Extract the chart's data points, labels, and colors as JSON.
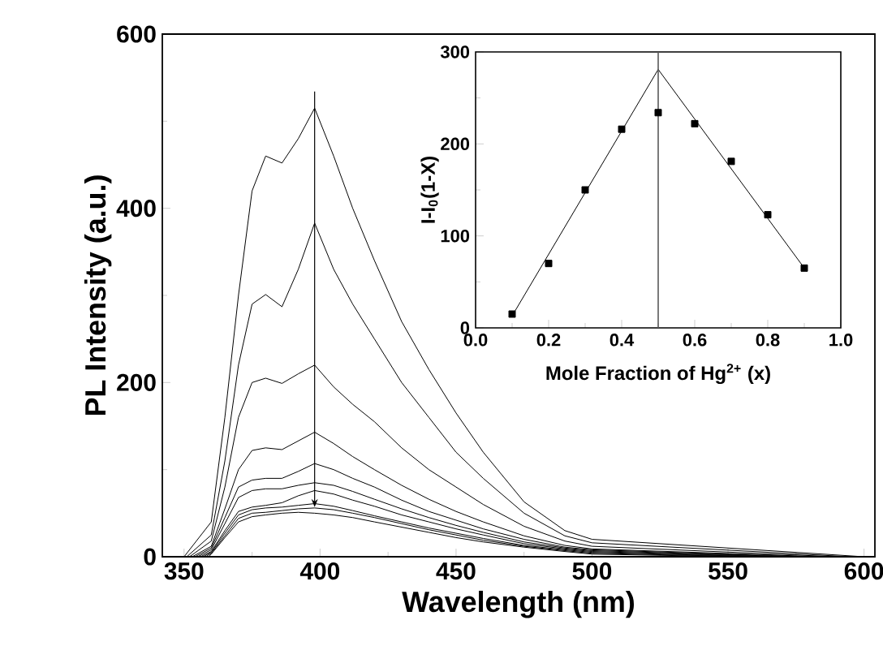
{
  "chart_data": [
    {
      "type": "line",
      "xlabel": "Wavelength (nm)",
      "ylabel": "PL Intensity (a.u.)",
      "xlim": [
        342,
        604
      ],
      "ylim": [
        0,
        600
      ],
      "xticks": [
        350,
        400,
        450,
        500,
        550,
        600
      ],
      "yticks": [
        0,
        200,
        400,
        600
      ],
      "marker": "none",
      "ref_lines": [
        {
          "axis": "x",
          "value": 398
        }
      ],
      "series": [
        {
          "color": "#000000",
          "x": [
            350,
            360,
            365,
            370,
            375,
            380,
            386,
            392,
            398,
            405,
            412,
            420,
            430,
            440,
            450,
            460,
            475,
            490,
            500,
            600
          ],
          "values": [
            0,
            40,
            160,
            300,
            420,
            460,
            452,
            480,
            515,
            460,
            400,
            340,
            270,
            215,
            165,
            120,
            63,
            30,
            20,
            0
          ]
        },
        {
          "color": "#000000",
          "x": [
            351,
            360,
            365,
            370,
            375,
            380,
            386,
            392,
            398,
            405,
            412,
            420,
            430,
            440,
            450,
            460,
            475,
            490,
            500,
            595
          ],
          "values": [
            0,
            25,
            110,
            220,
            290,
            301,
            287,
            330,
            383,
            330,
            290,
            250,
            200,
            160,
            120,
            90,
            50,
            24,
            16,
            0
          ]
        },
        {
          "color": "#000000",
          "x": [
            352,
            360,
            365,
            370,
            375,
            380,
            386,
            392,
            398,
            405,
            412,
            420,
            430,
            440,
            450,
            460,
            475,
            490,
            500,
            590
          ],
          "values": [
            0,
            18,
            80,
            160,
            200,
            205,
            199,
            210,
            220,
            195,
            175,
            155,
            125,
            100,
            80,
            60,
            35,
            18,
            12,
            0
          ]
        },
        {
          "color": "#000000",
          "x": [
            353,
            360,
            365,
            370,
            375,
            380,
            386,
            392,
            398,
            405,
            412,
            420,
            430,
            440,
            450,
            460,
            475,
            490,
            500,
            585
          ],
          "values": [
            0,
            12,
            55,
            100,
            122,
            125,
            123,
            133,
            143,
            130,
            115,
            100,
            82,
            66,
            52,
            40,
            24,
            13,
            9,
            0
          ]
        },
        {
          "color": "#000000",
          "x": [
            354,
            360,
            365,
            370,
            375,
            380,
            386,
            392,
            398,
            405,
            412,
            420,
            430,
            440,
            450,
            460,
            475,
            490,
            500,
            580
          ],
          "values": [
            0,
            10,
            45,
            80,
            88,
            90,
            90,
            98,
            107,
            100,
            90,
            80,
            65,
            52,
            42,
            32,
            20,
            11,
            8,
            0
          ]
        },
        {
          "color": "#000000",
          "x": [
            355,
            360,
            365,
            370,
            375,
            380,
            386,
            392,
            398,
            405,
            412,
            420,
            430,
            440,
            450,
            460,
            475,
            490,
            500,
            575
          ],
          "values": [
            0,
            8,
            38,
            68,
            76,
            78,
            78,
            82,
            85,
            82,
            75,
            66,
            55,
            45,
            36,
            28,
            17,
            10,
            7,
            0
          ]
        },
        {
          "color": "#000000",
          "x": [
            356,
            360,
            365,
            370,
            375,
            380,
            386,
            392,
            398,
            405,
            412,
            420,
            430,
            440,
            450,
            460,
            475,
            490,
            500,
            570
          ],
          "values": [
            0,
            6,
            30,
            52,
            57,
            59,
            62,
            70,
            76,
            72,
            65,
            58,
            48,
            40,
            32,
            25,
            15,
            9,
            6,
            0
          ]
        },
        {
          "color": "#000000",
          "x": [
            357,
            360,
            365,
            370,
            375,
            380,
            386,
            392,
            398,
            405,
            412,
            420,
            430,
            440,
            450,
            460,
            475,
            490,
            500,
            565
          ],
          "values": [
            0,
            5,
            27,
            48,
            54,
            56,
            57,
            59,
            61,
            58,
            53,
            47,
            40,
            33,
            27,
            21,
            13,
            8,
            5,
            0
          ]
        },
        {
          "color": "#000000",
          "x": [
            358,
            360,
            365,
            370,
            375,
            380,
            386,
            392,
            398,
            405,
            412,
            420,
            430,
            440,
            450,
            460,
            475,
            490,
            500,
            560
          ],
          "values": [
            0,
            4,
            24,
            44,
            50,
            51,
            53,
            55,
            56,
            54,
            50,
            45,
            38,
            31,
            25,
            19,
            12,
            7,
            4,
            0
          ]
        },
        {
          "color": "#000000",
          "x": [
            359,
            360,
            365,
            370,
            375,
            380,
            386,
            392,
            398,
            405,
            412,
            420,
            430,
            440,
            450,
            460,
            475,
            490,
            500,
            555
          ],
          "values": [
            0,
            3,
            22,
            40,
            46,
            48,
            50,
            51,
            50,
            48,
            45,
            40,
            34,
            28,
            22,
            17,
            11,
            6,
            3,
            0
          ]
        }
      ]
    },
    {
      "type": "scatter",
      "xlabel": "Mole Fraction of Hg$^{2+}$ (x)",
      "ylabel": "I-I$_{0}$(1-X)",
      "xlim": [
        0,
        1
      ],
      "ylim": [
        0,
        300
      ],
      "xticks": [
        {
          "value": 0,
          "label": "0.0"
        },
        {
          "value": 0.2,
          "label": "0.2"
        },
        {
          "value": 0.4,
          "label": "0.4"
        },
        {
          "value": 0.6,
          "label": "0.6"
        },
        {
          "value": 0.8,
          "label": "0.8"
        },
        {
          "value": 1,
          "label": "1.0"
        }
      ],
      "yticks": [
        0,
        100,
        200,
        300
      ],
      "ref_lines": [
        {
          "axis": "x",
          "value": 0.5
        }
      ],
      "series": [
        {
          "type": "scatter",
          "marker": "square",
          "color": "#000000",
          "x": [
            0.1,
            0.2,
            0.3,
            0.4,
            0.5,
            0.6,
            0.7,
            0.8,
            0.9
          ],
          "values": [
            15,
            70,
            150,
            216,
            234,
            222,
            181,
            123,
            65
          ]
        },
        {
          "type": "line",
          "marker": "none",
          "color": "#000000",
          "x": [
            0.1,
            0.5,
            0.9
          ],
          "values": [
            13,
            281,
            65
          ]
        }
      ]
    }
  ]
}
